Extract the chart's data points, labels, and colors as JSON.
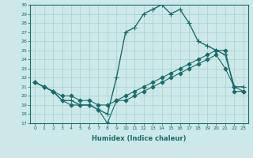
{
  "xlabel": "Humidex (Indice chaleur)",
  "xlim": [
    -0.5,
    23.5
  ],
  "ylim": [
    17,
    30
  ],
  "yticks": [
    17,
    18,
    19,
    20,
    21,
    22,
    23,
    24,
    25,
    26,
    27,
    28,
    29,
    30
  ],
  "xticks": [
    0,
    1,
    2,
    3,
    4,
    5,
    6,
    7,
    8,
    9,
    10,
    11,
    12,
    13,
    14,
    15,
    16,
    17,
    18,
    19,
    20,
    21,
    22,
    23
  ],
  "bg_color": "#cde8e8",
  "line_color": "#1a6b6b",
  "grid_color": "#aacfcf",
  "series": [
    {
      "x": [
        0,
        1,
        2,
        3,
        4,
        5,
        6,
        7,
        8,
        9,
        10,
        11,
        12,
        13,
        14,
        15,
        16,
        17,
        18,
        19,
        20,
        21,
        22,
        23
      ],
      "y": [
        21.5,
        21.0,
        20.5,
        19.5,
        19.5,
        19.0,
        19.0,
        18.5,
        18.0,
        22.0,
        27.0,
        27.5,
        29.0,
        29.5,
        30.0,
        29.0,
        29.5,
        28.0,
        26.0,
        25.5,
        25.0,
        24.5,
        21.0,
        21.0
      ],
      "marker": "+",
      "markersize": 5,
      "linewidth": 1.0
    },
    {
      "x": [
        0,
        1,
        2,
        3,
        4,
        5,
        6,
        7,
        8,
        9,
        10,
        11,
        12,
        13,
        14,
        15,
        16,
        17,
        18,
        19,
        20,
        21,
        22,
        23
      ],
      "y": [
        21.5,
        21.0,
        20.5,
        20.0,
        20.0,
        19.5,
        19.5,
        19.0,
        19.0,
        19.5,
        20.0,
        20.5,
        21.0,
        21.5,
        22.0,
        22.5,
        23.0,
        23.5,
        24.0,
        24.5,
        25.0,
        25.0,
        20.5,
        20.5
      ],
      "marker": "D",
      "markersize": 2.5,
      "linewidth": 0.8
    },
    {
      "x": [
        0,
        1,
        2,
        3,
        4,
        5,
        6,
        7,
        8,
        9,
        10,
        11,
        12,
        13,
        14,
        15,
        16,
        17,
        18,
        19,
        20,
        21,
        22,
        23
      ],
      "y": [
        21.5,
        21.0,
        20.5,
        19.5,
        19.0,
        19.0,
        19.0,
        18.5,
        17.0,
        19.5,
        19.5,
        20.0,
        20.5,
        21.0,
        21.5,
        22.0,
        22.5,
        23.0,
        23.5,
        24.0,
        24.5,
        23.0,
        21.0,
        20.5
      ],
      "marker": "D",
      "markersize": 2.5,
      "linewidth": 0.8
    }
  ]
}
